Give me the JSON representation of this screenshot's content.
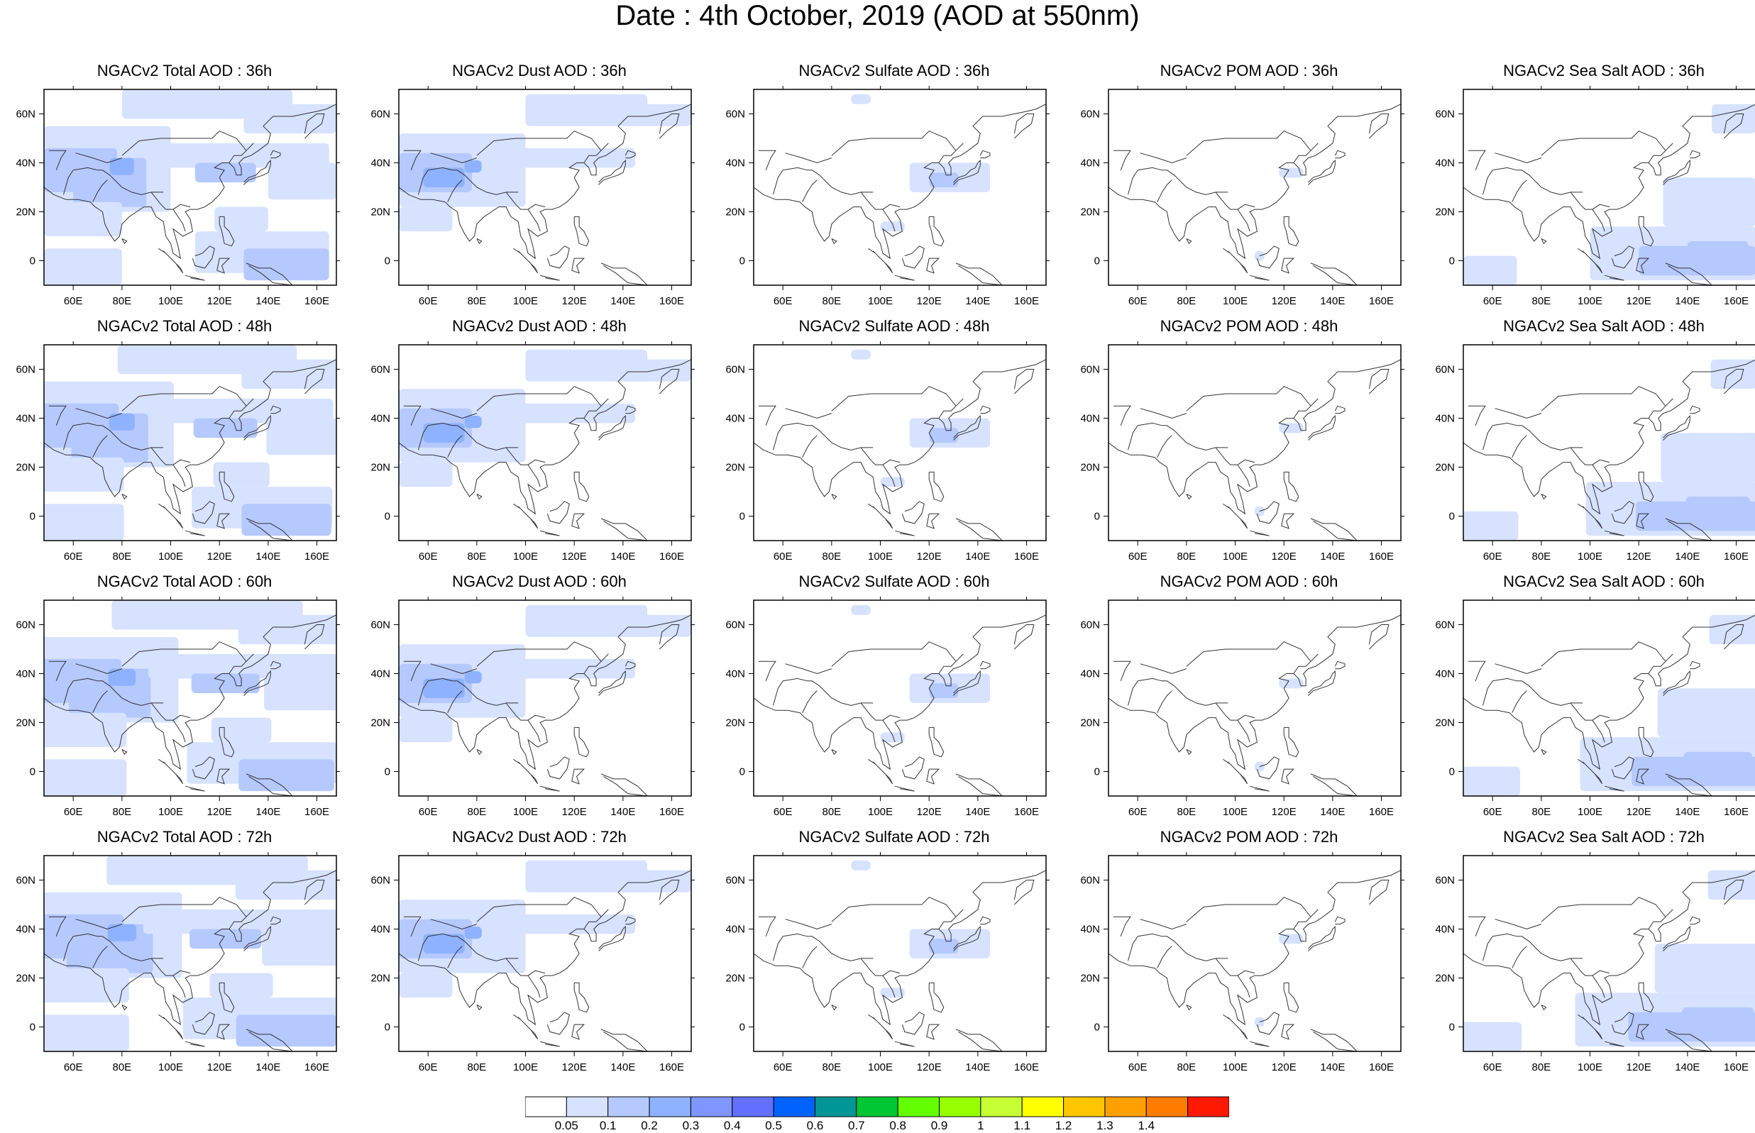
{
  "title": "Date : 4th October, 2019 (AOD at 550nm)",
  "axes": {
    "x_ticks": [
      "60E",
      "80E",
      "100E",
      "120E",
      "140E",
      "160E"
    ],
    "y_ticks": [
      "60N",
      "40N",
      "20N",
      "0"
    ],
    "lon_range": [
      48,
      168
    ],
    "lat_range": [
      -10,
      70
    ]
  },
  "rows": [
    {
      "lead": "36h",
      "panels": [
        {
          "title": "NGACv2 Total AOD : 36h",
          "type": "total"
        },
        {
          "title": "NGACv2 Dust AOD : 36h",
          "type": "dust"
        },
        {
          "title": "NGACv2 Sulfate AOD : 36h",
          "type": "sulfate"
        },
        {
          "title": "NGACv2 POM AOD : 36h",
          "type": "pom"
        },
        {
          "title": "NGACv2 Sea Salt AOD : 36h",
          "type": "seasalt"
        }
      ]
    },
    {
      "lead": "48h",
      "panels": [
        {
          "title": "NGACv2 Total AOD : 48h",
          "type": "total"
        },
        {
          "title": "NGACv2 Dust AOD : 48h",
          "type": "dust"
        },
        {
          "title": "NGACv2 Sulfate AOD : 48h",
          "type": "sulfate"
        },
        {
          "title": "NGACv2 POM AOD : 48h",
          "type": "pom"
        },
        {
          "title": "NGACv2 Sea Salt AOD : 48h",
          "type": "seasalt"
        }
      ]
    },
    {
      "lead": "60h",
      "panels": [
        {
          "title": "NGACv2 Total AOD : 60h",
          "type": "total"
        },
        {
          "title": "NGACv2 Dust AOD : 60h",
          "type": "dust"
        },
        {
          "title": "NGACv2 Sulfate AOD : 60h",
          "type": "sulfate"
        },
        {
          "title": "NGACv2 POM AOD : 60h",
          "type": "pom"
        },
        {
          "title": "NGACv2 Sea Salt AOD : 60h",
          "type": "seasalt"
        }
      ]
    },
    {
      "lead": "72h",
      "panels": [
        {
          "title": "NGACv2 Total AOD : 72h",
          "type": "total"
        },
        {
          "title": "NGACv2 Dust AOD : 72h",
          "type": "dust"
        },
        {
          "title": "NGACv2 Sulfate AOD : 72h",
          "type": "sulfate"
        },
        {
          "title": "NGACv2 POM AOD : 72h",
          "type": "pom"
        },
        {
          "title": "NGACv2 Sea Salt  AOD : 72h",
          "type": "seasalt"
        }
      ]
    }
  ],
  "colorbar": {
    "labels": [
      "0.05",
      "0.1",
      "0.2",
      "0.3",
      "0.4",
      "0.5",
      "0.6",
      "0.7",
      "0.8",
      "0.9",
      "1",
      "1.1",
      "1.2",
      "1.3",
      "1.4"
    ],
    "colors": [
      "#ffffff",
      "#d6e2ff",
      "#b5c9ff",
      "#8eb2ff",
      "#7f96ff",
      "#6370ff",
      "#0063ff",
      "#009696",
      "#00c633",
      "#63ff00",
      "#96ff00",
      "#c6ff33",
      "#ffff00",
      "#ffc600",
      "#ffa000",
      "#ff7c00",
      "#ff1900"
    ]
  }
}
